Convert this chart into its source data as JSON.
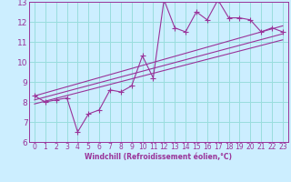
{
  "xlabel": "Windchill (Refroidissement éolien,°C)",
  "bg_color": "#cceeff",
  "grid_color": "#99dddd",
  "line_color": "#993399",
  "xlim": [
    -0.5,
    23.5
  ],
  "ylim": [
    6,
    13
  ],
  "xticks": [
    0,
    1,
    2,
    3,
    4,
    5,
    6,
    7,
    8,
    9,
    10,
    11,
    12,
    13,
    14,
    15,
    16,
    17,
    18,
    19,
    20,
    21,
    22,
    23
  ],
  "yticks": [
    6,
    7,
    8,
    9,
    10,
    11,
    12,
    13
  ],
  "scatter_x": [
    0,
    1,
    2,
    3,
    4,
    5,
    6,
    7,
    8,
    9,
    10,
    11,
    12,
    13,
    14,
    15,
    16,
    17,
    18,
    19,
    20,
    21,
    22,
    23
  ],
  "scatter_y": [
    8.3,
    8.0,
    8.1,
    8.2,
    6.5,
    7.4,
    7.6,
    8.6,
    8.5,
    8.8,
    10.3,
    9.2,
    13.1,
    11.7,
    11.5,
    12.5,
    12.1,
    13.1,
    12.2,
    12.2,
    12.1,
    11.5,
    11.7,
    11.5
  ],
  "line1_x": [
    0,
    23
  ],
  "line1_y": [
    8.1,
    11.4
  ],
  "line2_x": [
    0,
    23
  ],
  "line2_y": [
    8.3,
    11.8
  ],
  "line3_x": [
    0,
    23
  ],
  "line3_y": [
    7.9,
    11.1
  ],
  "marker_size": 3,
  "line_width": 0.8,
  "tick_fontsize": 5.5,
  "xlabel_fontsize": 5.5
}
